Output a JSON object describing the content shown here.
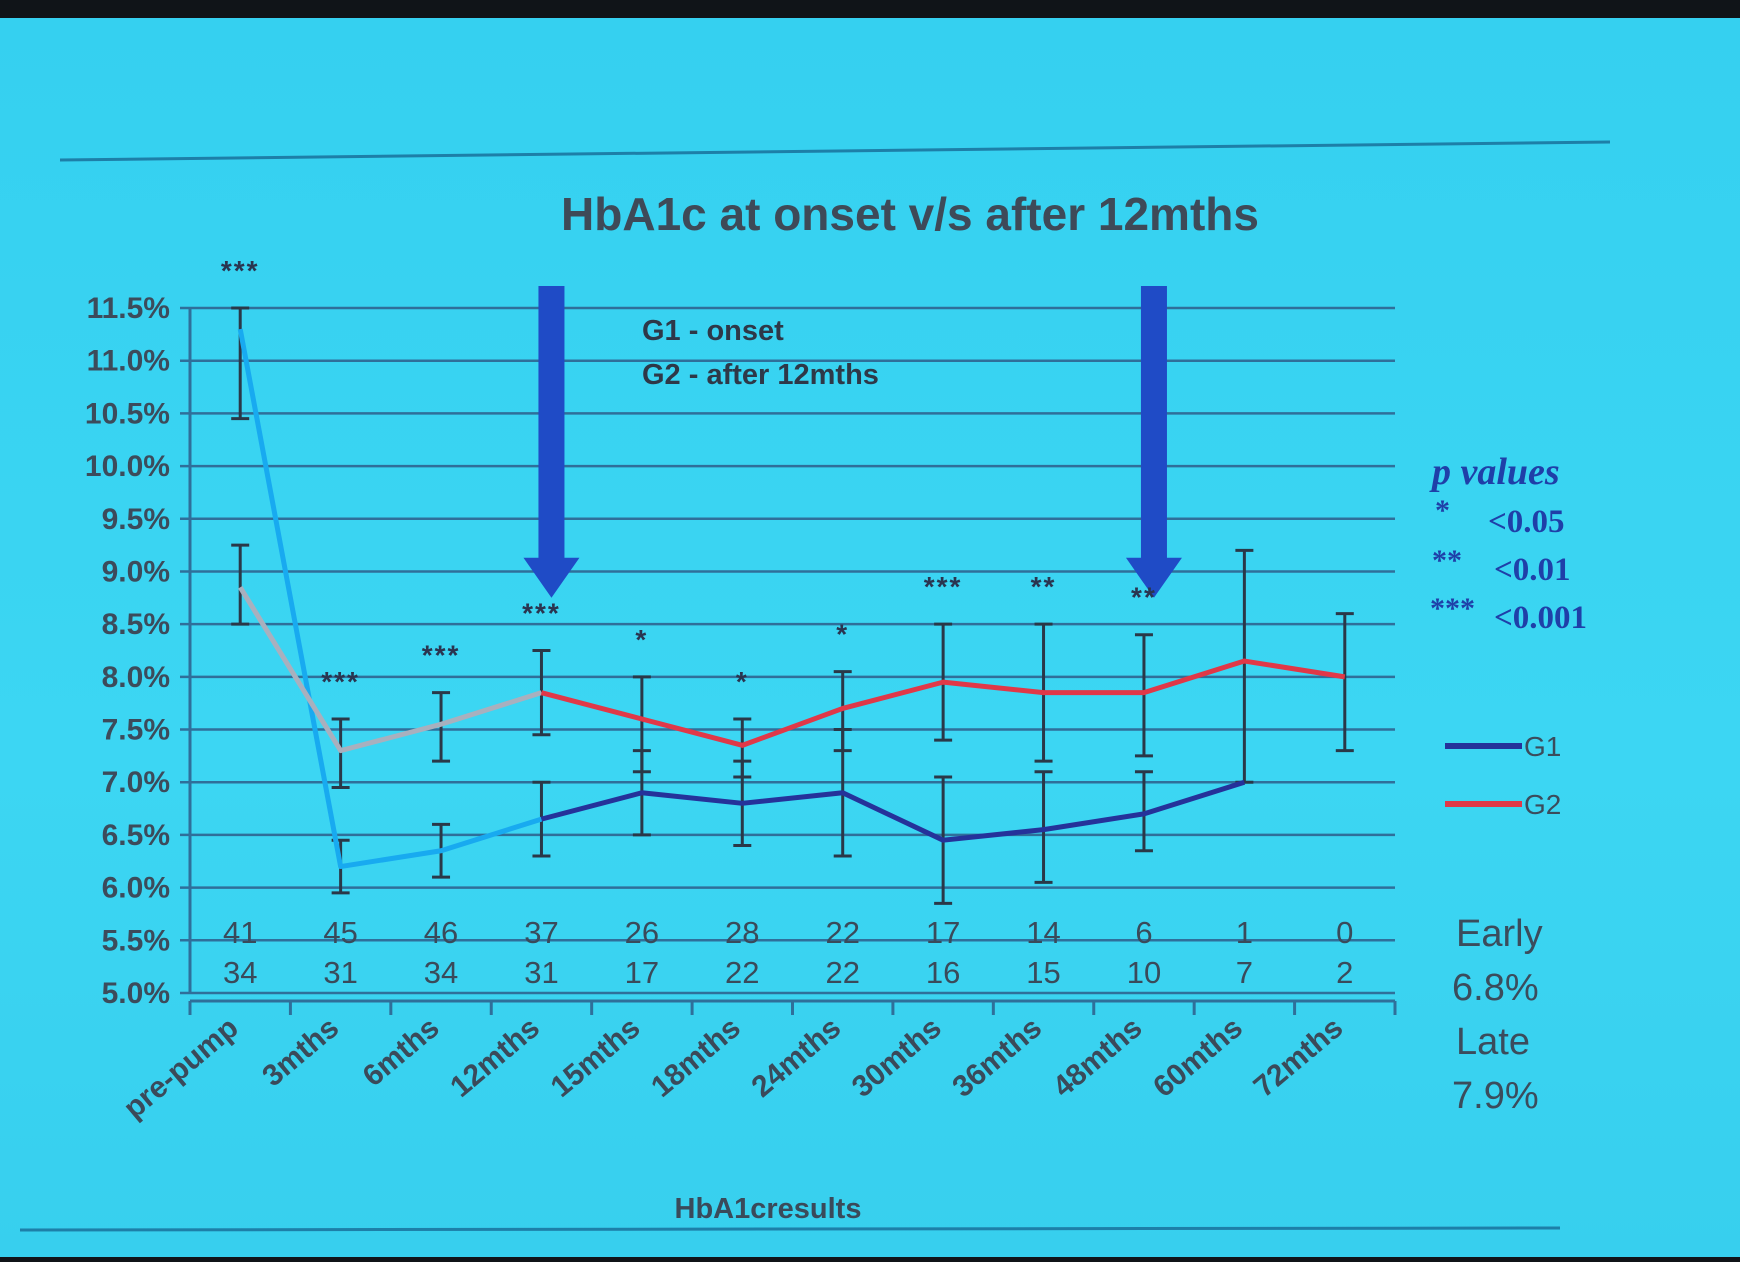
{
  "chart_data": {
    "type": "line",
    "title": "HbA1c at onset v/s after 12mths",
    "xlabel": "HbA1cresults",
    "ylabel": "",
    "ylim": [
      5.0,
      11.5
    ],
    "y_ticks": [
      "11.5%",
      "11.0%",
      "10.5%",
      "10.0%",
      "9.5%",
      "9.0%",
      "8.5%",
      "8.0%",
      "7.5%",
      "7.0%",
      "6.5%",
      "6.0%",
      "5.5%",
      "5.0%"
    ],
    "categories": [
      "pre-pump",
      "3mths",
      "6mths",
      "12mths",
      "15mths",
      "18mths",
      "24mths",
      "30mths",
      "36mths",
      "48mths",
      "60mths",
      "72mths"
    ],
    "grid": true,
    "series": [
      {
        "name": "G1",
        "color": "#25329a",
        "early_color": "#18aaf0",
        "values": [
          11.3,
          6.2,
          6.35,
          6.65,
          6.9,
          6.8,
          6.9,
          6.45,
          6.55,
          6.7,
          7.0,
          null
        ],
        "err_low": [
          10.45,
          5.95,
          6.1,
          6.3,
          6.5,
          6.4,
          6.3,
          5.85,
          6.05,
          6.35,
          null,
          null
        ],
        "err_high": [
          11.5,
          6.45,
          6.6,
          7.0,
          7.3,
          7.2,
          7.5,
          7.05,
          7.1,
          7.1,
          null,
          null
        ]
      },
      {
        "name": "G2",
        "color": "#e03848",
        "early_color": "#a8b0be",
        "values": [
          8.85,
          7.3,
          7.55,
          7.85,
          7.6,
          7.35,
          7.7,
          7.95,
          7.85,
          7.85,
          8.15,
          8.0
        ],
        "err_low": [
          8.5,
          6.95,
          7.2,
          7.45,
          7.1,
          7.05,
          7.3,
          7.4,
          7.2,
          7.25,
          7.0,
          7.3
        ],
        "err_high": [
          9.25,
          7.6,
          7.85,
          8.25,
          8.0,
          7.6,
          8.05,
          8.5,
          8.5,
          8.4,
          9.2,
          8.6
        ]
      }
    ],
    "significance": [
      "***",
      "***",
      "***",
      "***",
      "*",
      "*",
      "*",
      "***",
      "**",
      "**",
      "",
      ""
    ],
    "counts_row1": [
      "41",
      "45",
      "46",
      "37",
      "26",
      "28",
      "22",
      "17",
      "14",
      "6",
      "1",
      "0"
    ],
    "counts_row2": [
      "34",
      "31",
      "34",
      "31",
      "17",
      "22",
      "22",
      "16",
      "15",
      "10",
      "7",
      "2"
    ],
    "annotations": [
      "G1 - onset",
      "G2 - after 12mths"
    ],
    "arrows_at": [
      "12mths",
      "48mths"
    ],
    "p_values": {
      "title": "p values",
      "rows": [
        {
          "stars": "*",
          "value": "<0.05"
        },
        {
          "stars": "**",
          "value": "<0.01"
        },
        {
          "stars": "***",
          "value": "<0.001"
        }
      ]
    },
    "summary": {
      "early_label": "Early",
      "early_value": "6.8%",
      "late_label": "Late",
      "late_value": "7.9%"
    },
    "legend": [
      {
        "label": "G1",
        "color": "#25329a"
      },
      {
        "label": "G2",
        "color": "#e03848"
      }
    ]
  }
}
